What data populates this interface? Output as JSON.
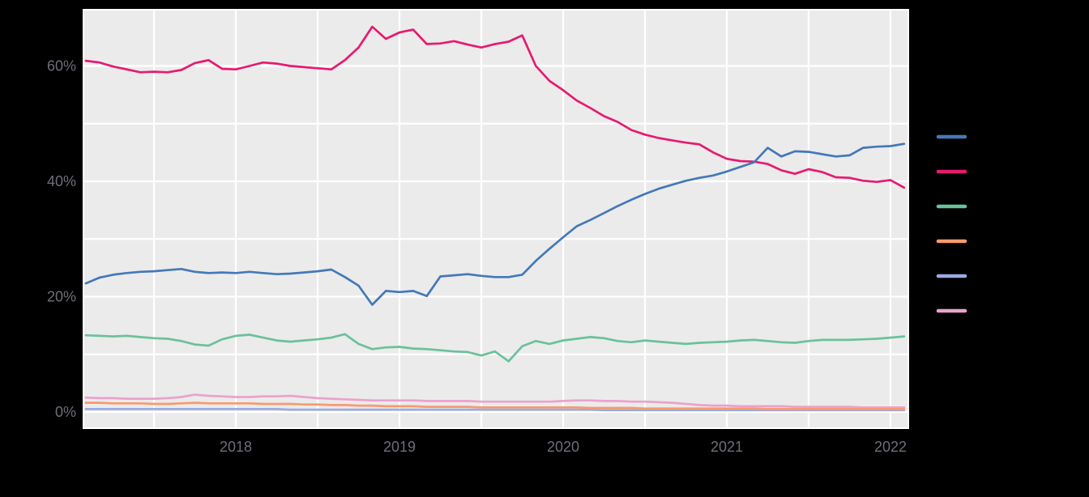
{
  "style": {
    "page_bg": "#000000",
    "panel_bg": "#ebebeb",
    "grid_color": "#ffffff",
    "axis_label_color": "#6e6e7a"
  },
  "chart_data": {
    "type": "line",
    "x_domain": [
      2017.069,
      2022.109
    ],
    "y_domain": [
      -2.81,
      69.75
    ],
    "x_start": 2017.0833,
    "x_step": 0.0833333,
    "grid": {
      "x_lines": [
        2017.5,
        2018,
        2018.5,
        2019,
        2019.5,
        2020,
        2020.5,
        2021,
        2021.5,
        2022
      ],
      "y_lines": [
        0,
        10,
        20,
        30,
        40,
        50,
        60
      ]
    },
    "x_ticks": [
      {
        "label": "2018",
        "value": 2018
      },
      {
        "label": "2019",
        "value": 2019
      },
      {
        "label": "2020",
        "value": 2020
      },
      {
        "label": "2021",
        "value": 2021
      },
      {
        "label": "2022",
        "value": 2022
      }
    ],
    "y_ticks": [
      {
        "label": "0%",
        "value": 0
      },
      {
        "label": "20%",
        "value": 20
      },
      {
        "label": "40%",
        "value": 40
      },
      {
        "label": "60%",
        "value": 60
      }
    ],
    "legend": {
      "position": "right",
      "labels_visible": false
    },
    "series": [
      {
        "id": "blue",
        "color": "#4478b9",
        "values": [
          22.3,
          23.3,
          23.8,
          24.1,
          24.3,
          24.4,
          24.6,
          24.8,
          24.3,
          24.1,
          24.2,
          24.1,
          24.3,
          24.1,
          23.9,
          24.0,
          24.2,
          24.4,
          24.7,
          23.4,
          21.9,
          18.6,
          21.0,
          20.8,
          21.0,
          20.1,
          23.5,
          23.7,
          23.9,
          23.6,
          23.4,
          23.4,
          23.8,
          26.2,
          28.3,
          30.3,
          32.2,
          33.3,
          34.5,
          35.7,
          36.8,
          37.8,
          38.7,
          39.4,
          40.1,
          40.6,
          41.0,
          41.7,
          42.5,
          43.3,
          45.8,
          44.3,
          45.2,
          45.1,
          44.7,
          44.3,
          44.5,
          45.8,
          46.0,
          46.1,
          46.5
        ]
      },
      {
        "id": "magenta",
        "color": "#e61a70",
        "values": [
          60.9,
          60.6,
          59.9,
          59.4,
          58.9,
          59.0,
          58.9,
          59.3,
          60.5,
          61.0,
          59.5,
          59.4,
          60.0,
          60.6,
          60.4,
          60.0,
          59.8,
          59.6,
          59.4,
          61.0,
          63.2,
          66.8,
          64.7,
          65.8,
          66.3,
          63.8,
          63.9,
          64.3,
          63.7,
          63.2,
          63.8,
          64.2,
          65.3,
          60.0,
          57.4,
          55.8,
          54.0,
          52.7,
          51.3,
          50.3,
          48.9,
          48.1,
          47.5,
          47.1,
          46.7,
          46.4,
          45.0,
          43.9,
          43.5,
          43.4,
          43.0,
          41.9,
          41.3,
          42.1,
          41.6,
          40.7,
          40.6,
          40.1,
          39.9,
          40.2,
          38.9
        ]
      },
      {
        "id": "green",
        "color": "#6ac19c",
        "values": [
          13.3,
          13.2,
          13.1,
          13.2,
          13.0,
          12.8,
          12.7,
          12.3,
          11.7,
          11.5,
          12.6,
          13.2,
          13.4,
          12.9,
          12.4,
          12.2,
          12.4,
          12.6,
          12.9,
          13.5,
          11.8,
          10.9,
          11.2,
          11.3,
          11.0,
          10.9,
          10.7,
          10.5,
          10.4,
          9.8,
          10.5,
          8.8,
          11.4,
          12.3,
          11.8,
          12.4,
          12.7,
          13.0,
          12.8,
          12.3,
          12.1,
          12.4,
          12.2,
          12.0,
          11.8,
          12.0,
          12.1,
          12.2,
          12.4,
          12.5,
          12.3,
          12.1,
          12.0,
          12.3,
          12.5,
          12.5,
          12.5,
          12.6,
          12.7,
          12.9,
          13.1
        ]
      },
      {
        "id": "orange",
        "color": "#f89a6f",
        "values": [
          1.6,
          1.6,
          1.5,
          1.5,
          1.5,
          1.4,
          1.4,
          1.5,
          1.6,
          1.5,
          1.5,
          1.5,
          1.5,
          1.4,
          1.4,
          1.4,
          1.3,
          1.3,
          1.2,
          1.2,
          1.1,
          1.1,
          1.0,
          1.0,
          1.0,
          0.9,
          0.9,
          0.9,
          0.9,
          0.8,
          0.8,
          0.8,
          0.8,
          0.8,
          0.8,
          0.8,
          0.8,
          0.7,
          0.7,
          0.7,
          0.7,
          0.6,
          0.6,
          0.6,
          0.6,
          0.6,
          0.6,
          0.6,
          0.6,
          0.6,
          0.5,
          0.5,
          0.5,
          0.5,
          0.5,
          0.5,
          0.5,
          0.5,
          0.5,
          0.5,
          0.5
        ]
      },
      {
        "id": "periwinkle",
        "color": "#9aabdf",
        "values": [
          0.5,
          0.5,
          0.5,
          0.5,
          0.5,
          0.5,
          0.5,
          0.5,
          0.5,
          0.5,
          0.5,
          0.5,
          0.5,
          0.5,
          0.5,
          0.4,
          0.4,
          0.4,
          0.4,
          0.4,
          0.4,
          0.4,
          0.4,
          0.4,
          0.4,
          0.4,
          0.4,
          0.4,
          0.4,
          0.4,
          0.4,
          0.4,
          0.4,
          0.4,
          0.4,
          0.4,
          0.4,
          0.4,
          0.3,
          0.3,
          0.3,
          0.3,
          0.3,
          0.3,
          0.3,
          0.3,
          0.3,
          0.3,
          0.3,
          0.3,
          0.3,
          0.3,
          0.3,
          0.3,
          0.3,
          0.3,
          0.3,
          0.3,
          0.3,
          0.3,
          0.3
        ]
      },
      {
        "id": "pink",
        "color": "#eba2cb",
        "values": [
          2.5,
          2.4,
          2.4,
          2.3,
          2.3,
          2.3,
          2.4,
          2.6,
          3.0,
          2.8,
          2.7,
          2.6,
          2.6,
          2.7,
          2.7,
          2.8,
          2.6,
          2.4,
          2.3,
          2.2,
          2.1,
          2.0,
          2.0,
          2.0,
          2.0,
          1.9,
          1.9,
          1.9,
          1.9,
          1.8,
          1.8,
          1.8,
          1.8,
          1.8,
          1.8,
          1.9,
          2.0,
          2.0,
          1.9,
          1.9,
          1.8,
          1.8,
          1.7,
          1.6,
          1.4,
          1.2,
          1.1,
          1.1,
          1.0,
          1.0,
          1.0,
          1.0,
          0.9,
          0.9,
          0.9,
          0.9,
          0.9,
          0.8,
          0.8,
          0.8,
          0.8
        ]
      }
    ]
  }
}
